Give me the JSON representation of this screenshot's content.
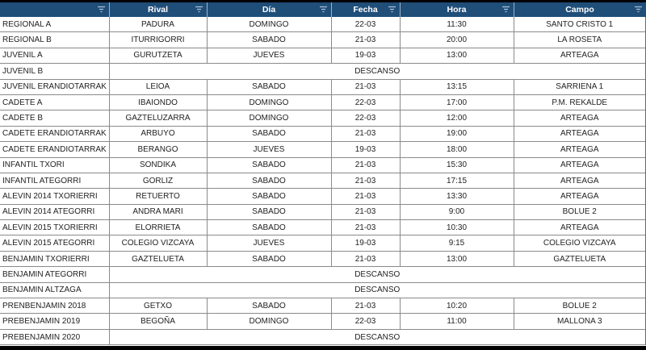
{
  "headers": [
    "",
    "Rival",
    "Día",
    "Fecha",
    "Hora",
    "Campo"
  ],
  "colors": {
    "header_bg": "#1f4e79",
    "header_text": "#ffffff"
  },
  "rows": [
    {
      "team": "REGIONAL A",
      "rival": "PADURA",
      "dia": "DOMINGO",
      "fecha": "22-03",
      "hora": "11:30",
      "campo": "SANTO CRISTO 1"
    },
    {
      "team": "REGIONAL B",
      "rival": "ITURRIGORRI",
      "dia": "SABADO",
      "fecha": "21-03",
      "hora": "20:00",
      "campo": "LA ROSETA"
    },
    {
      "team": "JUVENIL A",
      "rival": "GURUTZETA",
      "dia": "JUEVES",
      "fecha": "19-03",
      "hora": "13:00",
      "campo": "ARTEAGA"
    },
    {
      "team": "JUVENIL B",
      "descanso": "DESCANSO"
    },
    {
      "team": "JUVENIL ERANDIOTARRAK",
      "rival": "LEIOA",
      "dia": "SABADO",
      "fecha": "21-03",
      "hora": "13:15",
      "campo": "SARRIENA 1"
    },
    {
      "team": "CADETE A",
      "rival": "IBAIONDO",
      "dia": "DOMINGO",
      "fecha": "22-03",
      "hora": "17:00",
      "campo": "P.M. REKALDE"
    },
    {
      "team": "CADETE B",
      "rival": "GAZTELUZARRA",
      "dia": "DOMINGO",
      "fecha": "22-03",
      "hora": "12:00",
      "campo": "ARTEAGA"
    },
    {
      "team": "CADETE ERANDIOTARRAK",
      "rival": "ARBUYO",
      "dia": "SABADO",
      "fecha": "21-03",
      "hora": "19:00",
      "campo": "ARTEAGA"
    },
    {
      "team": "CADETE ERANDIOTARRAK",
      "rival": "BERANGO",
      "dia": "JUEVES",
      "fecha": "19-03",
      "hora": "18:00",
      "campo": "ARTEAGA"
    },
    {
      "team": "INFANTIL TXORI",
      "rival": "SONDIKA",
      "dia": "SABADO",
      "fecha": "21-03",
      "hora": "15:30",
      "campo": "ARTEAGA"
    },
    {
      "team": "INFANTIL ATEGORRI",
      "rival": "GORLIZ",
      "dia": "SABADO",
      "fecha": "21-03",
      "hora": "17:15",
      "campo": "ARTEAGA"
    },
    {
      "team": "ALEVIN 2014 TXORIERRI",
      "rival": "RETUERTO",
      "dia": "SABADO",
      "fecha": "21-03",
      "hora": "13:30",
      "campo": "ARTEAGA"
    },
    {
      "team": "ALEVIN 2014 ATEGORRI",
      "rival": "ANDRA MARI",
      "dia": "SABADO",
      "fecha": "21-03",
      "hora": "9:00",
      "campo": "BOLUE 2"
    },
    {
      "team": "ALEVIN 2015 TXORIERRI",
      "rival": "ELORRIETA",
      "dia": "SABADO",
      "fecha": "21-03",
      "hora": "10:30",
      "campo": "ARTEAGA"
    },
    {
      "team": "ALEVIN 2015 ATEGORRI",
      "rival": "COLEGIO VIZCAYA",
      "dia": "JUEVES",
      "fecha": "19-03",
      "hora": "9:15",
      "campo": "COLEGIO VIZCAYA"
    },
    {
      "team": "BENJAMIN TXORIERRI",
      "rival": "GAZTELUETA",
      "dia": "SABADO",
      "fecha": "21-03",
      "hora": "13:00",
      "campo": "GAZTELUETA"
    },
    {
      "team": "BENJAMIN ATEGORRI",
      "descanso": "DESCANSO"
    },
    {
      "team": "BENJAMIN ALTZAGA",
      "descanso": "DESCANSO"
    },
    {
      "team": "PRENBENJAMIN 2018",
      "rival": "GETXO",
      "dia": "SABADO",
      "fecha": "21-03",
      "hora": "10:20",
      "campo": "BOLUE 2"
    },
    {
      "team": "PREBENJAMIN 2019",
      "rival": "BEGOÑA",
      "dia": "DOMINGO",
      "fecha": "22-03",
      "hora": "11:00",
      "campo": "MALLONA 3"
    },
    {
      "team": "PREBENJAMIN 2020",
      "descanso": "DESCANSO"
    }
  ]
}
